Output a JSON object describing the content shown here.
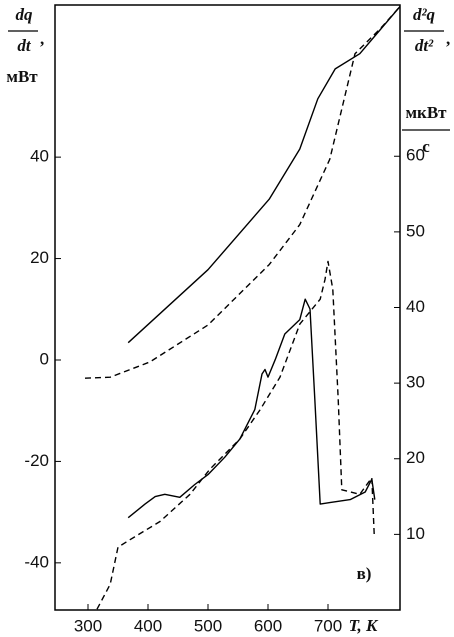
{
  "chart_data": {
    "type": "line",
    "ylabel_numerator": "dq",
    "ylabel_denominator": "dt",
    "ylabel_comma": ",",
    "ylabel_unit": "мВт",
    "y2label_numerator": "d²q",
    "y2label_denominator": "dt²",
    "y2label_comma": ",",
    "y2label_unit": "мкВт",
    "y2label_unit_denominator": "с",
    "xlabel": "T, K",
    "annotation": "в)",
    "xlim": [
      245,
      820
    ],
    "xticks": [
      300,
      400,
      500,
      600,
      700
    ],
    "ylim": [
      -49.3,
      70
    ],
    "yticks": [
      -40,
      -20,
      0,
      20,
      40
    ],
    "y2lim": [
      0,
      80
    ],
    "y2ticks": [
      10,
      20,
      30,
      40,
      50,
      60
    ],
    "series": [
      {
        "color": "#000000",
        "dashed": false,
        "axis": "y",
        "x": [
          367,
          500,
          602,
          653,
          683,
          712,
          753,
          820
        ],
        "values": [
          3.4,
          17.8,
          31.7,
          41.6,
          51.5,
          57.4,
          60.4,
          69.7
        ]
      },
      {
        "color": "#000000",
        "dashed": true,
        "axis": "y",
        "x": [
          295,
          337,
          403,
          500,
          602,
          653,
          703,
          745,
          787,
          820
        ],
        "values": [
          -3.6,
          -3.4,
          -0.4,
          6.9,
          18.8,
          26.7,
          39.6,
          60.4,
          65.3,
          69.7
        ]
      },
      {
        "color": "#000000",
        "dashed": false,
        "axis": "y2",
        "x": [
          367,
          395,
          412,
          428,
          453,
          478,
          500,
          528,
          553,
          578,
          590,
          595,
          600,
          612,
          628,
          653,
          662,
          670,
          678,
          687,
          703,
          737,
          762,
          773,
          778
        ],
        "values": [
          12.2,
          14.0,
          15.0,
          15.3,
          14.9,
          16.6,
          17.9,
          20.2,
          22.6,
          26.5,
          31.2,
          31.8,
          30.8,
          33.1,
          36.5,
          38.4,
          41.1,
          39.8,
          27.9,
          14.0,
          14.2,
          14.6,
          15.6,
          17.3,
          14.6
        ]
      },
      {
        "color": "#000000",
        "dashed": true,
        "axis": "y2",
        "x": [
          315,
          337,
          350,
          370,
          420,
          470,
          503,
          553,
          587,
          620,
          653,
          687,
          695,
          700,
          708,
          717,
          723,
          753,
          773,
          777
        ],
        "values": [
          0.1,
          3.4,
          8.3,
          9.3,
          11.7,
          15.3,
          18.6,
          22.6,
          26.5,
          30.8,
          37.8,
          41.1,
          43.7,
          46.1,
          42.4,
          27.9,
          15.9,
          15.3,
          17.5,
          10.0
        ]
      }
    ]
  }
}
